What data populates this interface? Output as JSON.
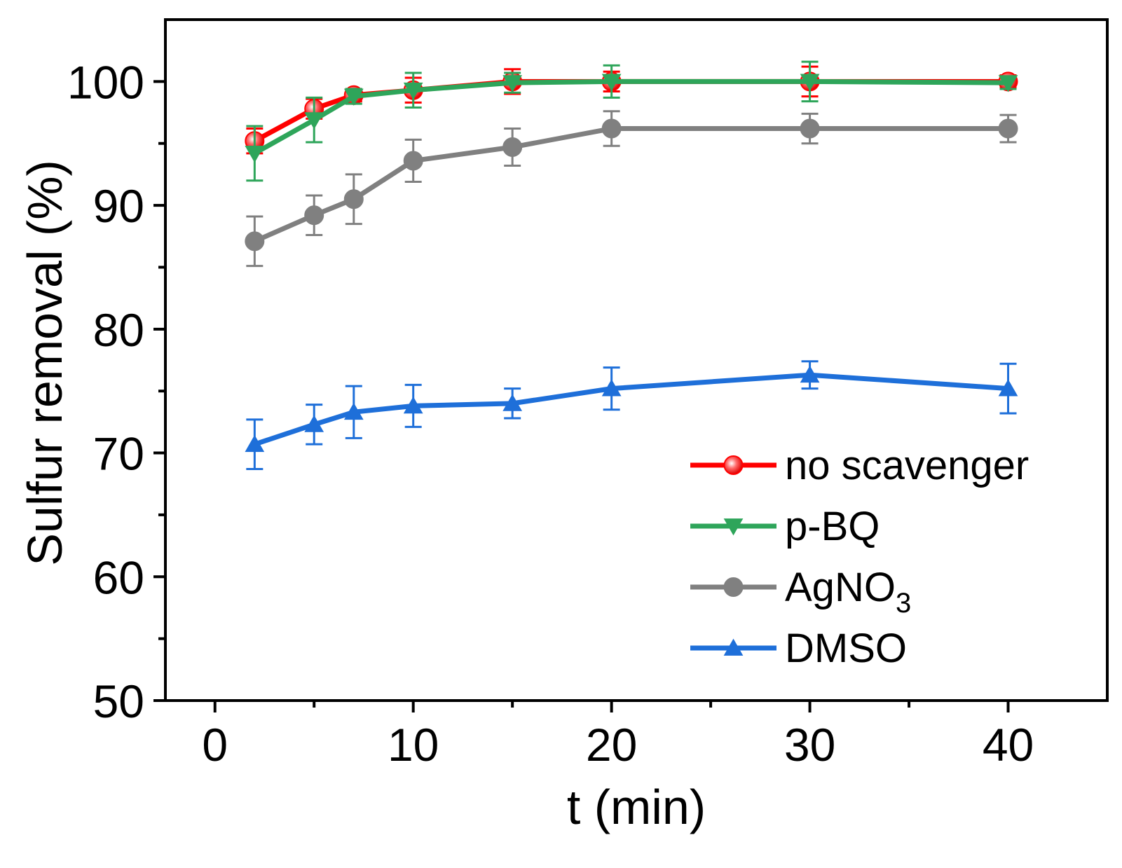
{
  "chart_data": {
    "type": "line",
    "title": "",
    "xlabel": "t (min)",
    "ylabel": "Sulfur removal (%)",
    "xlim": [
      -2.5,
      45
    ],
    "ylim": [
      50,
      105
    ],
    "x_ticks": [
      0,
      10,
      20,
      30,
      40
    ],
    "x_minor_ticks": [
      5,
      15,
      25,
      35
    ],
    "y_ticks": [
      50,
      60,
      70,
      80,
      90,
      100
    ],
    "y_minor_ticks": [
      55,
      65,
      75,
      85,
      95
    ],
    "legend_position": "bottom-right",
    "grid": false,
    "x": [
      2,
      5,
      7,
      10,
      15,
      20,
      30,
      40
    ],
    "series": [
      {
        "name": "no scavenger",
        "name_main": "no scavenger",
        "name_sub": "",
        "color": "#ff0000",
        "marker": "circle-shaded",
        "values": [
          95.2,
          97.8,
          98.9,
          99.3,
          100.0,
          100.0,
          100.0,
          100.0
        ],
        "errors": [
          1.0,
          0.8,
          0.5,
          1.0,
          1.0,
          0.8,
          1.2,
          0.5
        ]
      },
      {
        "name": "p-BQ",
        "name_main": "p-BQ",
        "name_sub": "",
        "color": "#2ea55a",
        "marker": "triangle-down",
        "values": [
          94.2,
          96.9,
          98.8,
          99.3,
          99.9,
          100.0,
          100.0,
          99.9
        ],
        "errors": [
          2.2,
          1.8,
          0.6,
          1.4,
          0.8,
          1.3,
          1.6,
          0.5
        ]
      },
      {
        "name": "AgNO3",
        "name_main": "AgNO",
        "name_sub": "3",
        "color": "#808080",
        "marker": "circle",
        "values": [
          87.1,
          89.2,
          90.5,
          93.6,
          94.7,
          96.2,
          96.2,
          96.2
        ],
        "errors": [
          2.0,
          1.6,
          2.0,
          1.7,
          1.5,
          1.4,
          1.2,
          1.1
        ]
      },
      {
        "name": "DMSO",
        "name_main": "DMSO",
        "name_sub": "",
        "color": "#1e6fd9",
        "marker": "triangle-up",
        "values": [
          70.7,
          72.3,
          73.3,
          73.8,
          74.0,
          75.2,
          76.3,
          75.2
        ],
        "errors": [
          2.0,
          1.6,
          2.1,
          1.7,
          1.2,
          1.7,
          1.1,
          2.0
        ]
      }
    ]
  }
}
